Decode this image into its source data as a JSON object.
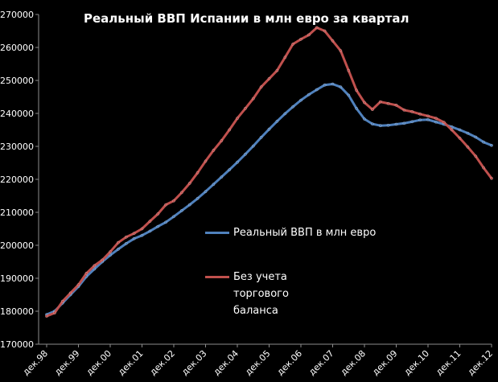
{
  "chart_data": {
    "type": "line",
    "title": "Реальный ВВП Испании в млн евро за квартал",
    "xlabel": "",
    "ylabel": "",
    "ylim": [
      170000,
      270000
    ],
    "yticks": [
      170000,
      180000,
      190000,
      200000,
      210000,
      220000,
      230000,
      240000,
      250000,
      260000,
      270000
    ],
    "ytick_labels": [
      "170000",
      "180000",
      "190000",
      "200000",
      "210000",
      "220000",
      "230000",
      "240000",
      "250000",
      "260000",
      "270000"
    ],
    "x_tick_labels": [
      "дек.98",
      "дек.99",
      "дек.00",
      "дек.01",
      "дек.02",
      "дек.03",
      "дек.04",
      "дек.05",
      "дек.06",
      "дек.07",
      "дек.08",
      "дек.09",
      "дек.10",
      "дек.11",
      "дек.12"
    ],
    "x": [
      "дек.98",
      "мар.99",
      "июн.99",
      "сен.99",
      "дек.99",
      "мар.00",
      "июн.00",
      "сен.00",
      "дек.00",
      "мар.01",
      "июн.01",
      "сен.01",
      "дек.01",
      "мар.02",
      "июн.02",
      "сен.02",
      "дек.02",
      "мар.03",
      "июн.03",
      "сен.03",
      "дек.03",
      "мар.04",
      "июн.04",
      "сен.04",
      "дек.04",
      "мар.05",
      "июн.05",
      "сен.05",
      "дек.05",
      "мар.06",
      "июн.06",
      "сен.06",
      "дек.06",
      "мар.07",
      "июн.07",
      "сен.07",
      "дек.07",
      "мар.08",
      "июн.08",
      "сен.08",
      "дек.08",
      "мар.09",
      "июн.09",
      "сен.09",
      "дек.09",
      "мар.10",
      "июн.10",
      "сен.10",
      "дек.10",
      "мар.11",
      "июн.11",
      "сен.11",
      "дек.11",
      "мар.12",
      "июн.12",
      "сен.12",
      "дек.12"
    ],
    "grid": false,
    "legend_position": "center-right",
    "series": [
      {
        "name": "Реальный ВВП в млн евро",
        "color": "#4F81BD",
        "values": [
          179000,
          180000,
          182500,
          185000,
          187500,
          190500,
          192800,
          195000,
          197000,
          198800,
          200500,
          202000,
          203000,
          204300,
          205700,
          207000,
          208700,
          210500,
          212300,
          214200,
          216300,
          218500,
          220700,
          222900,
          225200,
          227600,
          230100,
          232700,
          235200,
          237600,
          239900,
          242000,
          244000,
          245700,
          247200,
          248600,
          248900,
          248000,
          245500,
          241500,
          238300,
          236800,
          236300,
          236400,
          236700,
          237000,
          237500,
          238000,
          238100,
          237400,
          236700,
          235900,
          235000,
          234000,
          232800,
          231300,
          230300
        ]
      },
      {
        "name": "Без учета торгового баланса",
        "color": "#C0504D",
        "values": [
          178500,
          179500,
          183000,
          185500,
          188000,
          191500,
          193800,
          195500,
          198000,
          200800,
          202500,
          203600,
          205000,
          207300,
          209500,
          212300,
          213500,
          216000,
          218800,
          222000,
          225500,
          228800,
          231700,
          235000,
          238500,
          241500,
          244500,
          248000,
          250500,
          253000,
          257000,
          261000,
          262500,
          263800,
          266000,
          265000,
          262000,
          259000,
          253000,
          247000,
          243300,
          241200,
          243500,
          243000,
          242500,
          241000,
          240500,
          239800,
          239200,
          238500,
          237300,
          235000,
          232500,
          229800,
          227000,
          223500,
          220300
        ]
      }
    ]
  }
}
